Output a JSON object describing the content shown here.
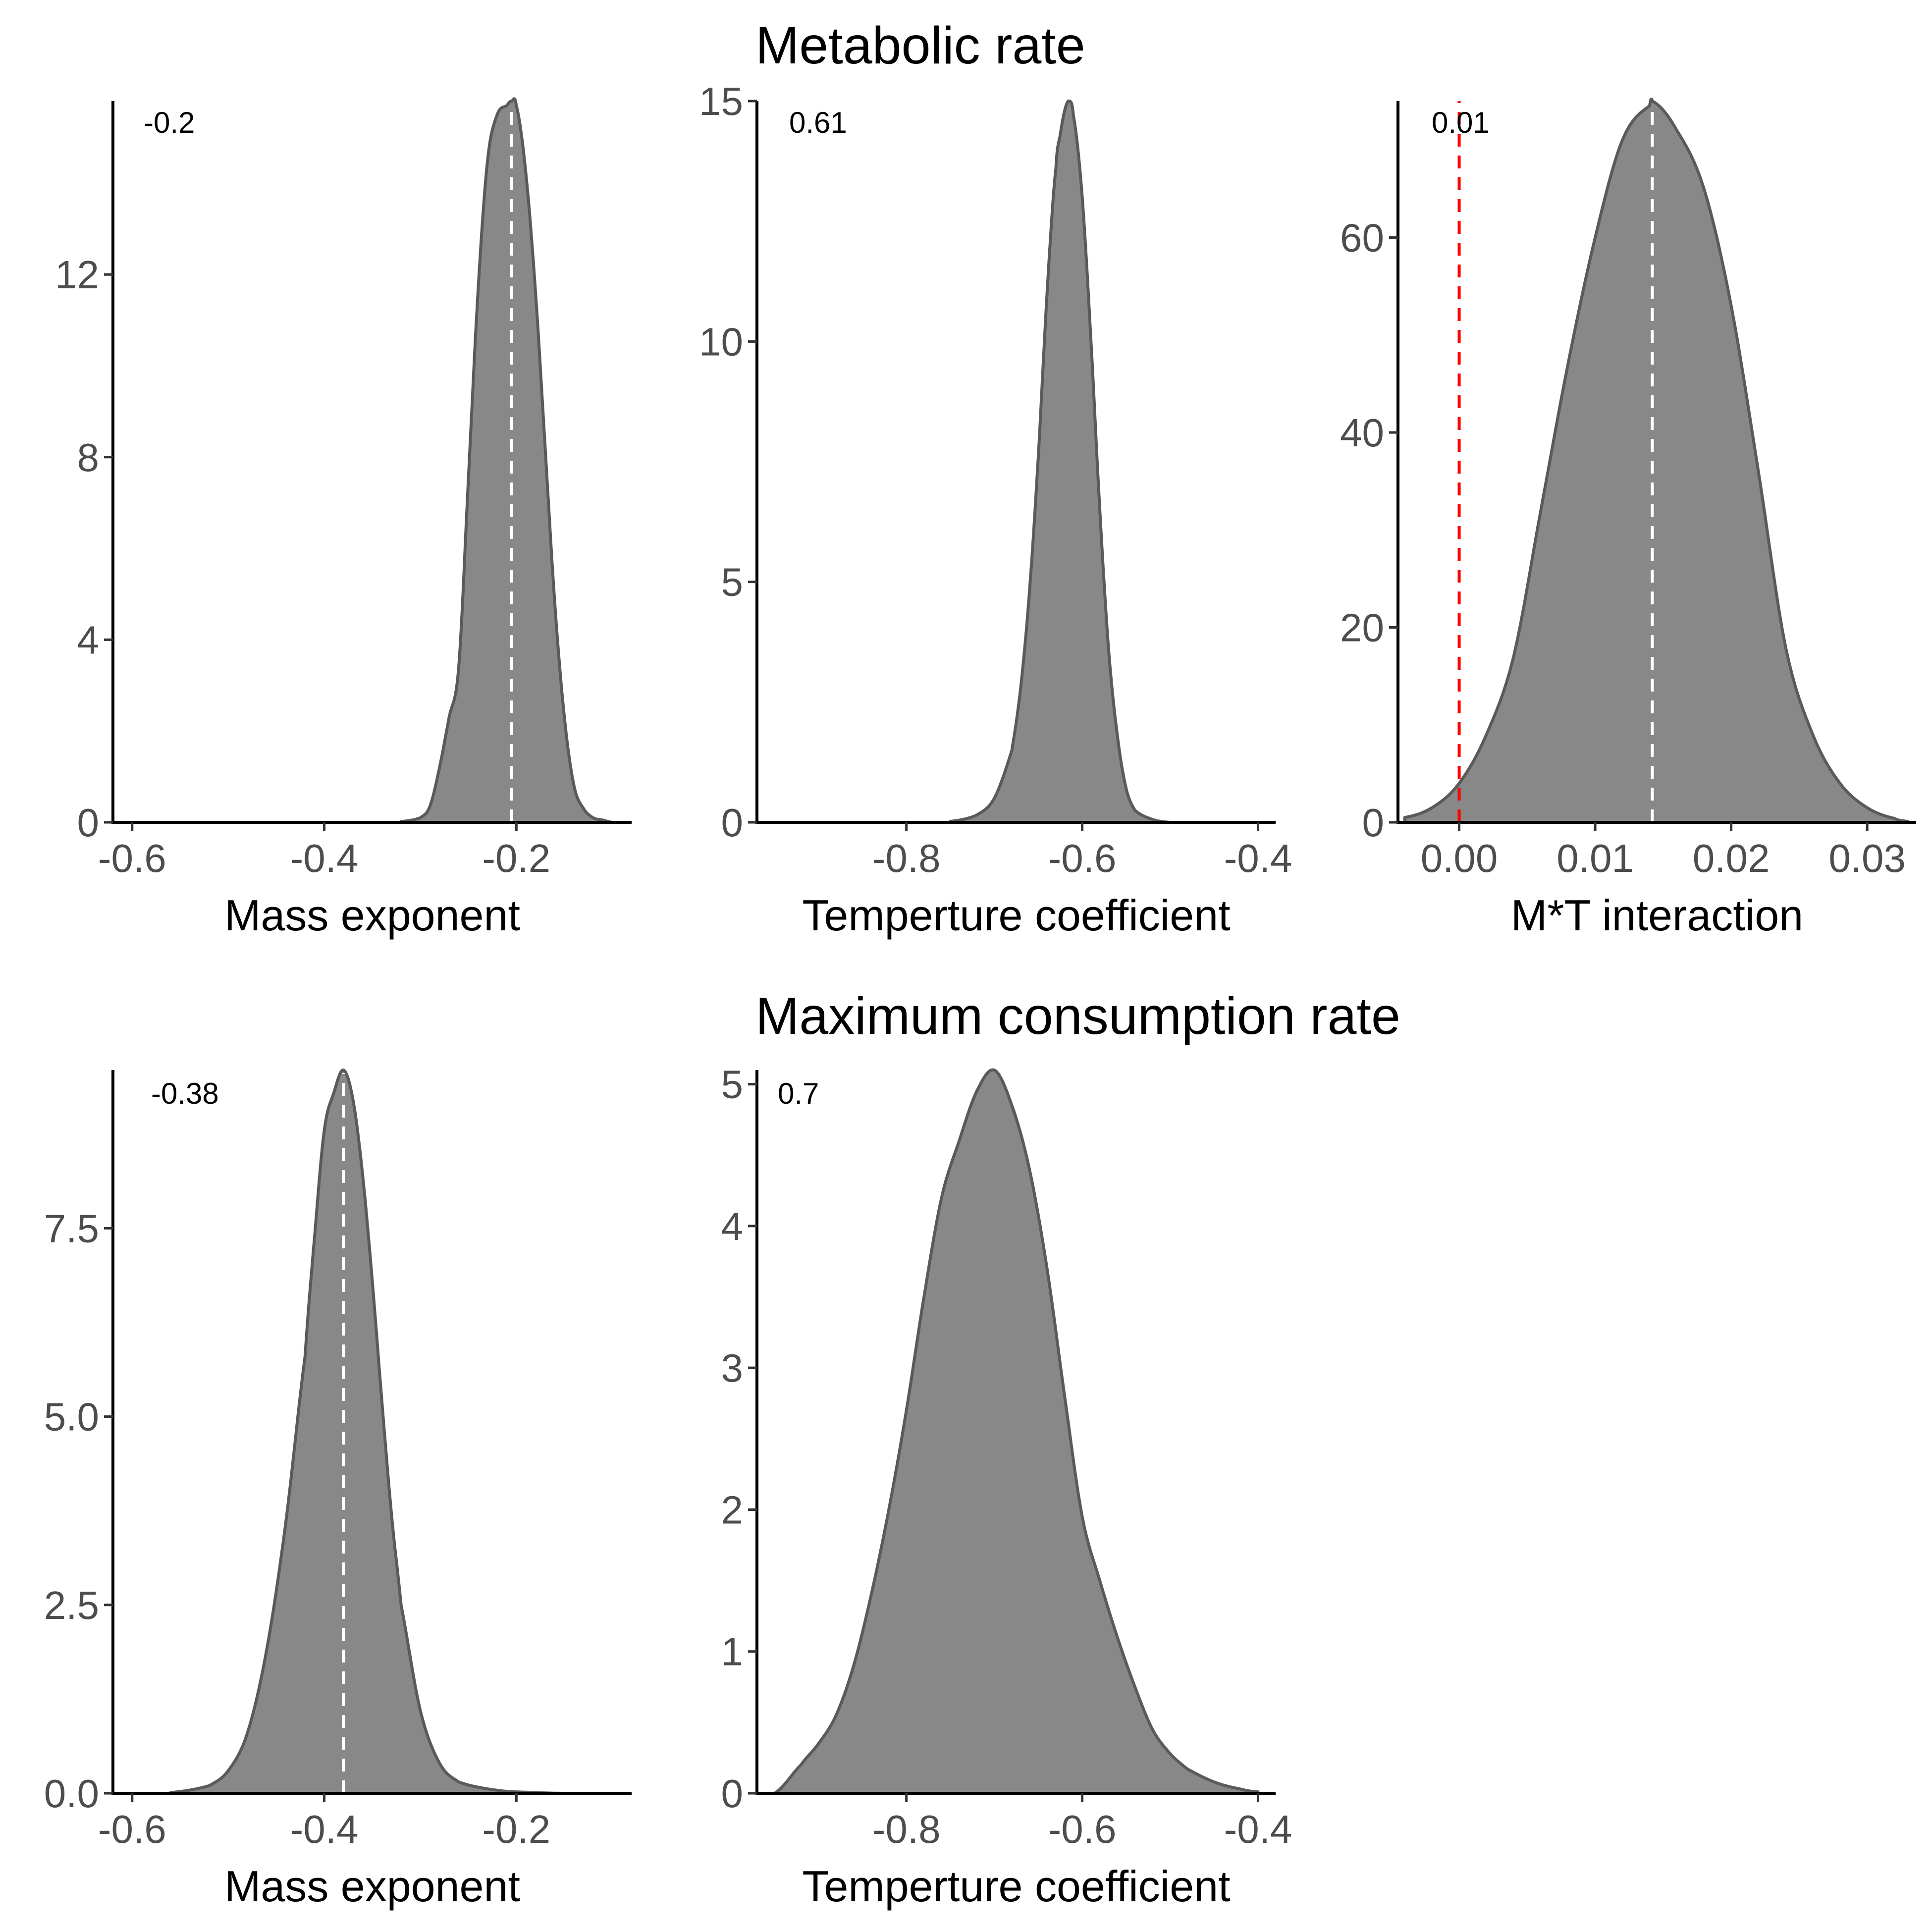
{
  "titles": {
    "top": "Metabolic rate",
    "bottom": "Maximum consumption rate"
  },
  "chart_data": [
    {
      "type": "area",
      "group": "Metabolic rate",
      "xlabel": "Mass exponent",
      "ylabel": "",
      "annotation": "-0.2",
      "xlim": [
        -0.62,
        -0.08
      ],
      "ylim": [
        0,
        15.8
      ],
      "xticks": [
        -0.6,
        -0.4,
        -0.2
      ],
      "xtick_labels": [
        "-0.6",
        "-0.4",
        "-0.2"
      ],
      "yticks": [
        0,
        4,
        8,
        12
      ],
      "ytick_labels": [
        "0",
        "4",
        "8",
        "12"
      ],
      "mean_line": -0.205,
      "mean": -0.205,
      "sd": 0.026,
      "kde_x": [
        -0.32,
        -0.3,
        -0.29,
        -0.28,
        -0.27,
        -0.26,
        -0.25,
        -0.24,
        -0.23,
        -0.22,
        -0.21,
        -0.205,
        -0.2,
        -0.19,
        -0.18,
        -0.17,
        -0.16,
        -0.15,
        -0.14,
        -0.13,
        -0.12,
        -0.11,
        -0.1
      ],
      "kde_y": [
        0.02,
        0.1,
        0.35,
        1.2,
        2.3,
        3.4,
        7.5,
        11.6,
        14.5,
        15.5,
        15.7,
        15.8,
        15.7,
        14.2,
        11.6,
        8.2,
        4.8,
        2.3,
        0.8,
        0.3,
        0.1,
        0.05,
        0
      ]
    },
    {
      "type": "area",
      "group": "Metabolic rate",
      "xlabel": "Temperture coefficient",
      "ylabel": "",
      "annotation": "0.61",
      "xlim": [
        -0.97,
        -0.38
      ],
      "ylim": [
        0,
        15
      ],
      "xticks": [
        -0.8,
        -0.6,
        -0.4
      ],
      "xtick_labels": [
        "-0.8",
        "-0.6",
        "-0.4"
      ],
      "yticks": [
        0,
        5,
        10,
        15
      ],
      "ytick_labels": [
        "0",
        "5",
        "10",
        "15"
      ],
      "mean_line": null,
      "mean": -0.615,
      "sd": 0.026,
      "kde_x": [
        -0.75,
        -0.72,
        -0.7,
        -0.68,
        -0.67,
        -0.66,
        -0.65,
        -0.64,
        -0.63,
        -0.625,
        -0.62,
        -0.615,
        -0.61,
        -0.6,
        -0.59,
        -0.58,
        -0.57,
        -0.56,
        -0.55,
        -0.54,
        -0.52,
        -0.5
      ],
      "kde_y": [
        0.02,
        0.15,
        0.5,
        1.5,
        2.8,
        4.8,
        7.6,
        11.0,
        13.6,
        14.3,
        14.8,
        15.0,
        14.7,
        13.0,
        10.0,
        6.5,
        3.6,
        1.8,
        0.7,
        0.25,
        0.06,
        0
      ]
    },
    {
      "type": "area",
      "group": "Metabolic rate",
      "xlabel": "M*T interaction",
      "ylabel": "",
      "annotation": "0.01",
      "xlim": [
        -0.0045,
        0.0336
      ],
      "ylim": [
        0,
        74
      ],
      "xticks": [
        0.0,
        0.01,
        0.02,
        0.03
      ],
      "xtick_labels": [
        "0.00",
        "0.01",
        "0.02",
        "0.03"
      ],
      "yticks": [
        0,
        20,
        40,
        60
      ],
      "ytick_labels": [
        "0",
        "20",
        "40",
        "60"
      ],
      "mean_line": 0.0142,
      "zero_line": 0,
      "mean": 0.0142,
      "sd": 0.0053,
      "kde_x": [
        -0.004,
        -0.002,
        0.0,
        0.002,
        0.004,
        0.006,
        0.008,
        0.01,
        0.012,
        0.014,
        0.0142,
        0.016,
        0.018,
        0.02,
        0.022,
        0.024,
        0.026,
        0.028,
        0.03,
        0.032,
        0.033
      ],
      "kde_y": [
        0.5,
        1.5,
        4,
        9,
        17,
        32,
        47,
        60,
        70,
        73.5,
        74,
        71,
        65,
        53,
        36,
        18,
        9,
        4,
        1.5,
        0.4,
        0.1
      ]
    },
    {
      "type": "area",
      "group": "Maximum consumption rate",
      "xlabel": "Mass exponent",
      "ylabel": "",
      "annotation": "-0.38",
      "xlim": [
        -0.62,
        -0.08
      ],
      "ylim": [
        0,
        9.6
      ],
      "xticks": [
        -0.6,
        -0.4,
        -0.2
      ],
      "xtick_labels": [
        "-0.6",
        "-0.4",
        "-0.2"
      ],
      "yticks": [
        0.0,
        2.5,
        5.0,
        7.5
      ],
      "ytick_labels": [
        "0.0",
        "2.5",
        "5.0",
        "7.5"
      ],
      "mean_line": -0.38,
      "mean": -0.38,
      "sd": 0.042,
      "kde_x": [
        -0.56,
        -0.52,
        -0.5,
        -0.48,
        -0.46,
        -0.44,
        -0.42,
        -0.41,
        -0.4,
        -0.39,
        -0.38,
        -0.37,
        -0.36,
        -0.35,
        -0.34,
        -0.33,
        -0.32,
        -0.3,
        -0.28,
        -0.26,
        -0.22,
        -0.18,
        -0.15
      ],
      "kde_y": [
        0.01,
        0.1,
        0.3,
        0.8,
        1.9,
        3.6,
        5.8,
        7.4,
        8.8,
        9.3,
        9.6,
        9.2,
        8.2,
        6.8,
        5.2,
        3.7,
        2.5,
        1.1,
        0.4,
        0.15,
        0.04,
        0.01,
        0
      ]
    },
    {
      "type": "area",
      "group": "Maximum consumption rate",
      "xlabel": "Temperture coefficient",
      "ylabel": "",
      "annotation": "0.7",
      "xlim": [
        -0.97,
        -0.38
      ],
      "ylim": [
        0,
        5.1
      ],
      "xticks": [
        -0.8,
        -0.6,
        -0.4
      ],
      "xtick_labels": [
        "-0.8",
        "-0.6",
        "-0.4"
      ],
      "yticks": [
        0,
        1,
        2,
        3,
        4,
        5
      ],
      "ytick_labels": [
        "0",
        "1",
        "2",
        "3",
        "4",
        "5"
      ],
      "mean_line": null,
      "mean": -0.7,
      "sd": 0.075,
      "kde_x": [
        -0.95,
        -0.92,
        -0.9,
        -0.88,
        -0.86,
        -0.84,
        -0.82,
        -0.8,
        -0.78,
        -0.76,
        -0.74,
        -0.72,
        -0.7,
        -0.68,
        -0.66,
        -0.64,
        -0.62,
        -0.6,
        -0.58,
        -0.56,
        -0.54,
        -0.52,
        -0.5,
        -0.48,
        -0.45,
        -0.42,
        -0.4
      ],
      "kde_y": [
        0,
        0.2,
        0.35,
        0.55,
        0.9,
        1.4,
        2.0,
        2.7,
        3.5,
        4.2,
        4.6,
        4.95,
        5.1,
        4.85,
        4.4,
        3.7,
        2.8,
        1.95,
        1.5,
        1.1,
        0.75,
        0.45,
        0.28,
        0.17,
        0.08,
        0.03,
        0.01
      ]
    }
  ]
}
